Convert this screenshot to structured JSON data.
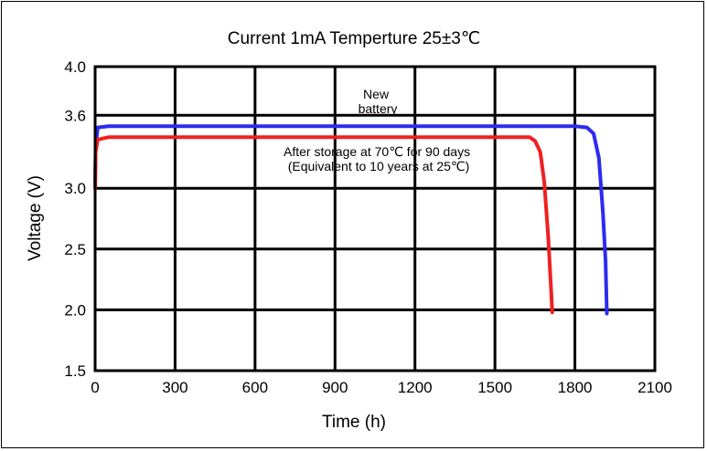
{
  "chart_data": {
    "type": "line",
    "title": "Current 1mA  Temperture 25±3℃",
    "xlabel": "Time (h)",
    "ylabel": "Voltage (V)",
    "xlim": [
      0,
      2100
    ],
    "ylim": [
      1.5,
      4.0
    ],
    "x_ticks": [
      "0",
      "300",
      "600",
      "900",
      "1200",
      "1500",
      "1800",
      "2100"
    ],
    "y_ticks": [
      "1.5",
      "2.0",
      "2.5",
      "3.0",
      "3.6",
      "4.0"
    ],
    "grid": true,
    "series": [
      {
        "color": "#2b2bf0",
        "points": [
          [
            0,
            3.0
          ],
          [
            2,
            3.35
          ],
          [
            10,
            3.5
          ],
          [
            50,
            3.51
          ],
          [
            1800,
            3.51
          ],
          [
            1845,
            3.5
          ],
          [
            1870,
            3.45
          ],
          [
            1890,
            3.25
          ],
          [
            1905,
            2.8
          ],
          [
            1915,
            2.4
          ],
          [
            1920,
            1.97
          ]
        ],
        "annotation": [
          "New",
          "battery"
        ]
      },
      {
        "color": "#f02020",
        "points": [
          [
            0,
            3.0
          ],
          [
            2,
            3.3
          ],
          [
            10,
            3.4
          ],
          [
            50,
            3.42
          ],
          [
            1630,
            3.42
          ],
          [
            1650,
            3.39
          ],
          [
            1670,
            3.3
          ],
          [
            1685,
            3.05
          ],
          [
            1700,
            2.6
          ],
          [
            1710,
            2.2
          ],
          [
            1715,
            1.98
          ]
        ],
        "annotation": [
          "After storage at 70℃ for 90 days",
          "(Equivalent to 10 years at 25℃)"
        ]
      }
    ]
  }
}
